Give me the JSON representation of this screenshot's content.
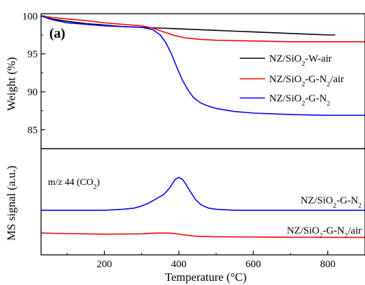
{
  "chart_data": [
    {
      "type": "line",
      "panel_label": "(a)",
      "xlabel": "",
      "ylabel": "Weight (%)",
      "xlim": [
        30,
        900
      ],
      "ylim": [
        82.5,
        100.3
      ],
      "yticks": [
        85,
        90,
        95,
        100
      ],
      "legend_position": "right",
      "series": [
        {
          "name": "NZ/SiO₂-W-air",
          "label_parts": [
            {
              "t": "NZ/SiO"
            },
            {
              "t": "2",
              "sub": true
            },
            {
              "t": "-W-air"
            }
          ],
          "color": "#000000",
          "x": [
            30,
            60,
            100,
            150,
            200,
            250,
            300,
            350,
            400,
            450,
            500,
            550,
            600,
            650,
            700,
            750,
            800,
            820
          ],
          "y": [
            100.0,
            99.6,
            99.3,
            99.0,
            98.8,
            98.6,
            98.5,
            98.4,
            98.3,
            98.2,
            98.1,
            98.0,
            97.9,
            97.8,
            97.7,
            97.6,
            97.5,
            97.5
          ]
        },
        {
          "name": "NZ/SiO₂-G-N₂/air",
          "label_parts": [
            {
              "t": "NZ/SiO"
            },
            {
              "t": "2",
              "sub": true
            },
            {
              "t": "-G-N"
            },
            {
              "t": "2",
              "sub": true
            },
            {
              "t": "/air"
            }
          ],
          "color": "#ff0000",
          "x": [
            30,
            60,
            100,
            150,
            200,
            250,
            300,
            330,
            360,
            390,
            420,
            460,
            500,
            600,
            700,
            800,
            900
          ],
          "y": [
            100.0,
            99.8,
            99.6,
            99.4,
            99.1,
            98.9,
            98.7,
            98.4,
            97.9,
            97.4,
            97.1,
            96.9,
            96.8,
            96.7,
            96.6,
            96.6,
            96.6
          ]
        },
        {
          "name": "NZ/SiO₂-G-N₂",
          "label_parts": [
            {
              "t": "NZ/SiO"
            },
            {
              "t": "2",
              "sub": true
            },
            {
              "t": "-G-N"
            },
            {
              "t": "2",
              "sub": true
            }
          ],
          "color": "#0000ff",
          "x": [
            30,
            60,
            100,
            150,
            200,
            250,
            300,
            330,
            350,
            365,
            380,
            395,
            410,
            425,
            440,
            460,
            480,
            500,
            550,
            600,
            700,
            800,
            900
          ],
          "y": [
            100.0,
            99.5,
            99.1,
            98.9,
            98.7,
            98.6,
            98.5,
            98.2,
            97.5,
            96.5,
            95.0,
            93.2,
            91.5,
            90.2,
            89.2,
            88.5,
            88.1,
            87.8,
            87.4,
            87.2,
            87.0,
            86.9,
            86.9
          ]
        }
      ]
    },
    {
      "type": "line",
      "xlabel": "Temperature (°C)",
      "ylabel": "MS signal (a.u.)",
      "xlim": [
        30,
        900
      ],
      "ylim": [
        0,
        1
      ],
      "xticks": [
        200,
        400,
        600,
        800
      ],
      "annotation_parts": [
        {
          "t": "m/z 44 (CO"
        },
        {
          "t": "2",
          "sub": true
        },
        {
          "t": ")"
        }
      ],
      "series": [
        {
          "name": "NZ/SiO₂-G-N₂",
          "label_parts": [
            {
              "t": "NZ/SiO"
            },
            {
              "t": "2",
              "sub": true
            },
            {
              "t": "-G-N"
            },
            {
              "t": "2",
              "sub": true
            }
          ],
          "label_position": "above-right",
          "color": "#0000ff",
          "x": [
            30,
            100,
            200,
            250,
            280,
            300,
            320,
            340,
            360,
            375,
            390,
            400,
            410,
            420,
            430,
            445,
            460,
            480,
            500,
            550,
            600,
            700,
            800,
            900
          ],
          "y": [
            0.42,
            0.42,
            0.42,
            0.43,
            0.44,
            0.46,
            0.49,
            0.53,
            0.57,
            0.63,
            0.71,
            0.73,
            0.71,
            0.66,
            0.6,
            0.52,
            0.47,
            0.44,
            0.43,
            0.42,
            0.42,
            0.42,
            0.42,
            0.42
          ]
        },
        {
          "name": "NZ/SiO₂-G-N₂/air",
          "label_parts": [
            {
              "t": "NZ/SiO"
            },
            {
              "t": "2",
              "sub": true
            },
            {
              "t": "-G-N"
            },
            {
              "t": "2",
              "sub": true
            },
            {
              "t": "/air"
            }
          ],
          "label_position": "above-right",
          "color": "#ff0000",
          "x": [
            30,
            100,
            200,
            300,
            340,
            370,
            390,
            420,
            450,
            500,
            600,
            700,
            800,
            900
          ],
          "y": [
            0.205,
            0.2,
            0.195,
            0.198,
            0.205,
            0.205,
            0.2,
            0.185,
            0.175,
            0.17,
            0.168,
            0.166,
            0.165,
            0.165
          ]
        }
      ]
    }
  ]
}
